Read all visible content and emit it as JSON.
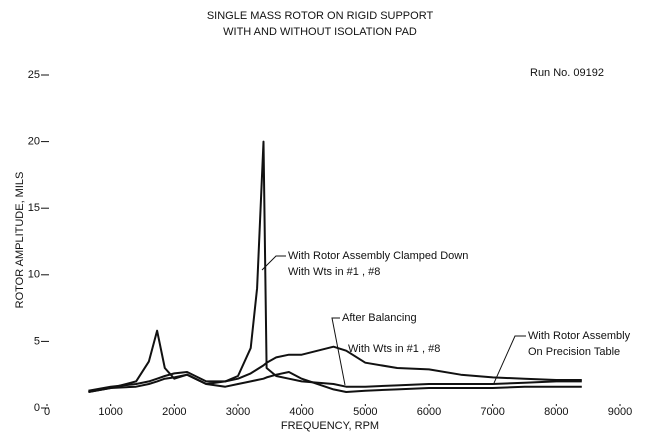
{
  "chart_data": {
    "type": "line",
    "title": "SINGLE MASS ROTOR ON RIGID SUPPORT",
    "subtitle": "WITH AND WITHOUT ISOLATION PAD",
    "run_label": "Run No. 09192",
    "x_label": "FREQUENCY, RPM",
    "y_label": "ROTOR AMPLITUDE, MILS",
    "x": [
      650,
      1000,
      1400,
      1600,
      1730,
      1850,
      2000,
      2200,
      2500,
      2800,
      3000,
      3200,
      3300,
      3400,
      3450,
      3600,
      3800,
      4000,
      4500,
      4700,
      5000,
      5500,
      6000,
      6500,
      7000,
      7500,
      8000,
      8400
    ],
    "series": [
      {
        "color": "#111111",
        "values": [
          1.2,
          1.5,
          2.0,
          3.5,
          5.8,
          3.0,
          2.2,
          2.5,
          1.8,
          2.0,
          2.4,
          4.5,
          9,
          20,
          3.0,
          2.4,
          2.2,
          2.0,
          1.8,
          1.6,
          1.6,
          1.7,
          1.8,
          1.8,
          1.8,
          1.9,
          2.0,
          2.0
        ]
      },
      {
        "color": "#111111",
        "values": [
          1.2,
          1.5,
          1.6,
          1.8,
          2.0,
          2.2,
          2.3,
          2.5,
          1.8,
          1.6,
          1.8,
          2.0,
          2.1,
          2.2,
          2.3,
          2.5,
          2.7,
          2.2,
          1.4,
          1.2,
          1.3,
          1.4,
          1.5,
          1.5,
          1.5,
          1.6,
          1.6,
          1.6
        ]
      },
      {
        "color": "#111111",
        "values": [
          1.3,
          1.6,
          1.8,
          2.0,
          2.2,
          2.4,
          2.6,
          2.7,
          2.0,
          2.0,
          2.2,
          2.6,
          2.9,
          3.2,
          3.4,
          3.8,
          4.0,
          4.0,
          4.6,
          4.3,
          3.4,
          3.0,
          2.9,
          2.5,
          2.3,
          2.2,
          2.1,
          2.1
        ]
      }
    ],
    "annotations": [
      "With Rotor Assembly Clamped Down",
      "With Wts in #1 , #8",
      "After Balancing",
      "With Wts in #1 , #8",
      "With Rotor Assembly",
      "On Precision Table"
    ],
    "xlim": [
      0,
      9000
    ],
    "xticks": [
      0,
      1000,
      2000,
      3000,
      4000,
      5000,
      6000,
      7000,
      8000,
      9000
    ],
    "ylim": [
      0,
      25
    ],
    "yticks": [
      0,
      5,
      10,
      15,
      20,
      25
    ],
    "grid": false
  }
}
